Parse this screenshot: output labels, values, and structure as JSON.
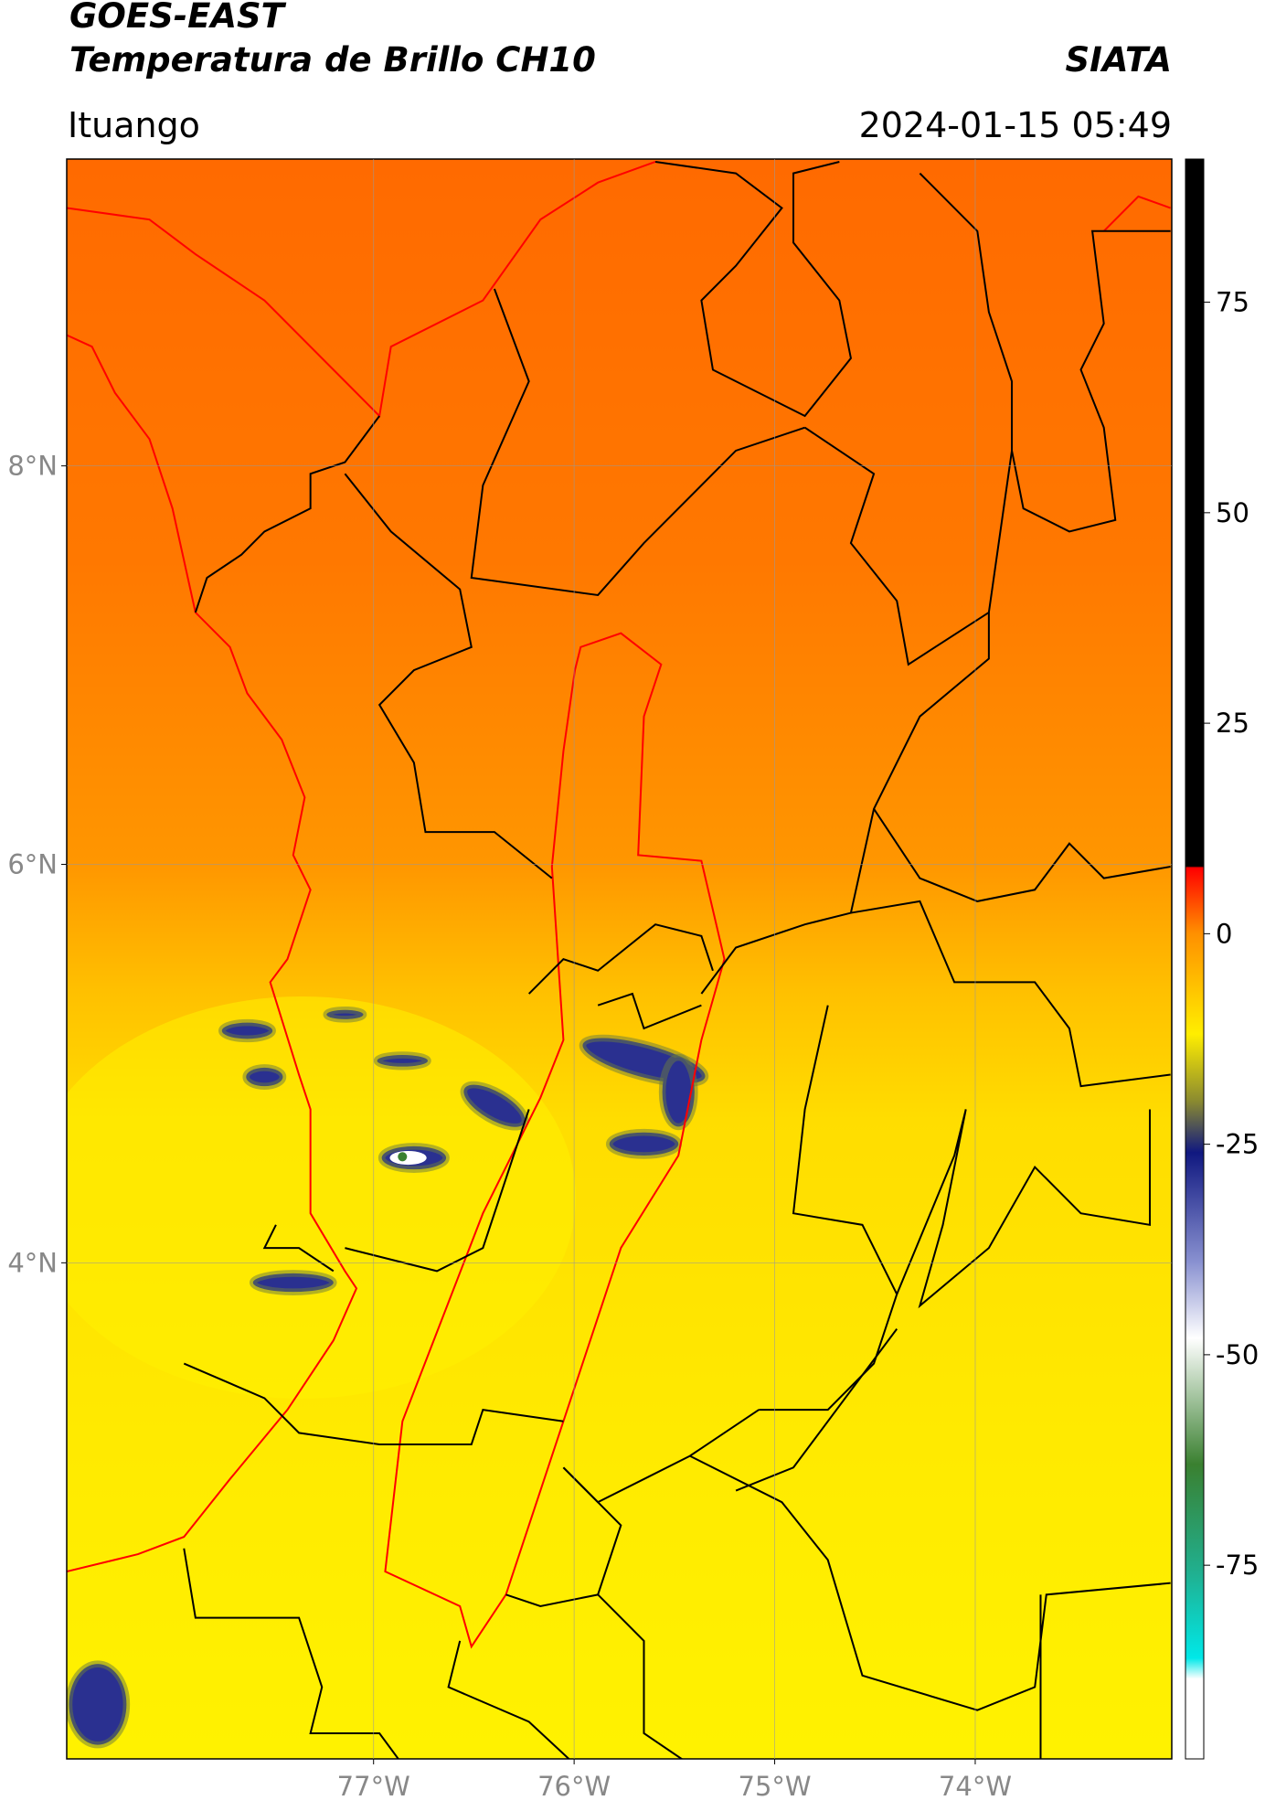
{
  "header": {
    "title": "GOES-EAST",
    "subtitle": "Temperatura de Brillo CH10",
    "source": "SIATA",
    "region": "Ituango",
    "timestamp": "2024-01-15 05:49"
  },
  "map": {
    "xlim": [
      -78.53,
      -73.02
    ],
    "ylim": [
      1.51,
      9.54
    ],
    "xticks": [
      {
        "value": -77,
        "label": "77°W"
      },
      {
        "value": -76,
        "label": "76°W"
      },
      {
        "value": -75,
        "label": "75°W"
      },
      {
        "value": -74,
        "label": "74°W"
      }
    ],
    "yticks": [
      {
        "value": 8,
        "label": "8°N"
      },
      {
        "value": 6,
        "label": "6°N"
      },
      {
        "value": 4,
        "label": "4°N"
      }
    ],
    "grid": true
  },
  "colorbar": {
    "lim": [
      -98,
      92
    ],
    "ticks": [
      75,
      50,
      25,
      0,
      -25,
      -50,
      -75
    ]
  }
}
